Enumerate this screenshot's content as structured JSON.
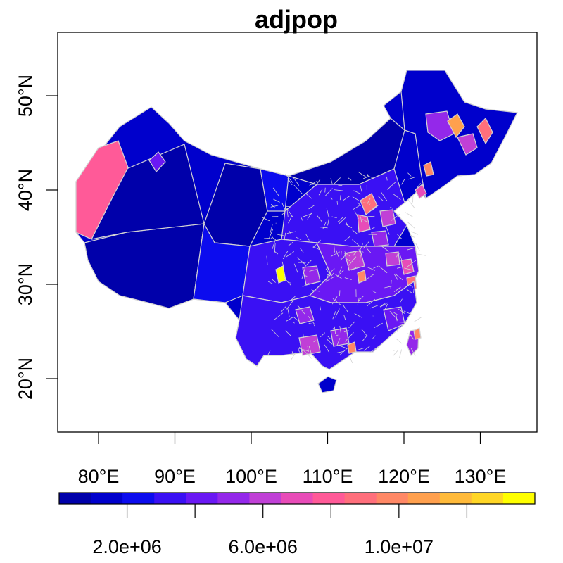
{
  "map": {
    "title": "adjpop",
    "x_ticks": [
      {
        "label": "80°E",
        "value": 80
      },
      {
        "label": "90°E",
        "value": 90
      },
      {
        "label": "100°E",
        "value": 100
      },
      {
        "label": "110°E",
        "value": 110
      },
      {
        "label": "120°E",
        "value": 120
      },
      {
        "label": "130°E",
        "value": 130
      }
    ],
    "y_ticks": [
      {
        "label": "20°N",
        "value": 20
      },
      {
        "label": "30°N",
        "value": 30
      },
      {
        "label": "40°N",
        "value": 40
      },
      {
        "label": "50°N",
        "value": 50
      }
    ],
    "legend": {
      "colors": [
        "#0000aa",
        "#0000cc",
        "#0c0cee",
        "#3a10f4",
        "#6a18f4",
        "#9428ea",
        "#c040d6",
        "#e84cb8",
        "#ff5a98",
        "#ff6f7c",
        "#ff8866",
        "#ffa04e",
        "#ffba3a",
        "#ffd626",
        "#ffff00"
      ],
      "ticks": [
        {
          "label": "2.0e+06",
          "value": 2000000
        },
        {
          "label": "6.0e+06",
          "value": 6000000
        },
        {
          "label": "1.0e+07",
          "value": 10000000
        }
      ]
    },
    "style": {
      "boundary_color": "#d3d3d3",
      "low_color": "#0000aa",
      "high_color": "#ffff00"
    }
  }
}
